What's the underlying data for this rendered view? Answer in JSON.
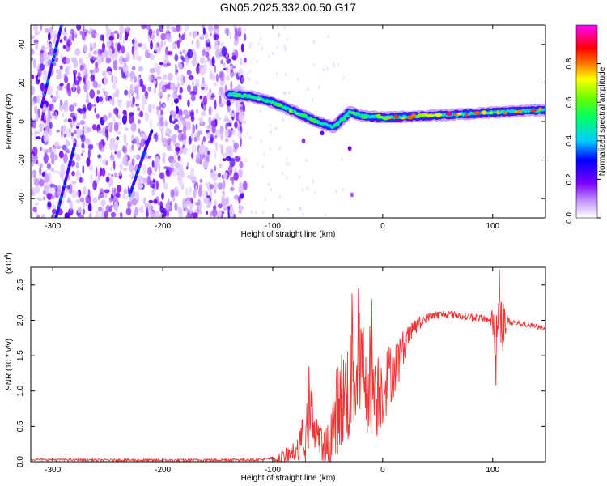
{
  "title": "GN05.2025.332.00.50.G17",
  "chart_data": [
    {
      "type": "heatmap",
      "title": "GN05.2025.332.00.50.G17",
      "xlabel": "Height of straight line (km)",
      "ylabel": "Frequency (Hz)",
      "xlim": [
        -320,
        148
      ],
      "ylim": [
        -50,
        50
      ],
      "xticks": [
        -300,
        -200,
        -100,
        0,
        100
      ],
      "yticks": [
        -40,
        -20,
        0,
        20,
        40
      ],
      "colorbar": {
        "label": "Normalized spectral amplitude",
        "range": [
          0.0,
          1.0
        ],
        "ticks": [
          0.0,
          0.2,
          0.4,
          0.6,
          0.8
        ],
        "tick_labels": [
          "0.0",
          "0.2",
          "0.4",
          "0.6",
          "0.8"
        ],
        "colormap": [
          "#ffffff",
          "#8800ff",
          "#0000ff",
          "#00ffff",
          "#00ff00",
          "#ffff00",
          "#ff0000",
          "#ff00ff"
        ]
      },
      "noise_region_x": [
        -320,
        -125
      ],
      "signal_ridge": [
        {
          "x": -140,
          "y": 14
        },
        {
          "x": -120,
          "y": 13
        },
        {
          "x": -100,
          "y": 10
        },
        {
          "x": -80,
          "y": 5
        },
        {
          "x": -60,
          "y": 0
        },
        {
          "x": -45,
          "y": -3
        },
        {
          "x": -30,
          "y": 5
        },
        {
          "x": -20,
          "y": 3
        },
        {
          "x": 0,
          "y": 2
        },
        {
          "x": 40,
          "y": 3
        },
        {
          "x": 80,
          "y": 4
        },
        {
          "x": 110,
          "y": 5
        },
        {
          "x": 148,
          "y": 6
        }
      ],
      "streaks": [
        {
          "x": [
            -310,
            -292
          ],
          "y": [
            8,
            50
          ]
        },
        {
          "x": [
            -297,
            -280
          ],
          "y": [
            -50,
            -12
          ]
        },
        {
          "x": [
            -230,
            -210
          ],
          "y": [
            -38,
            -5
          ]
        }
      ]
    },
    {
      "type": "line",
      "xlabel": "Height of straight line (km)",
      "ylabel": "SNR (10 * v/v)",
      "yscale_label": "(x10",
      "yscale_exp": "4",
      "yscale_close": ")",
      "xlim": [
        -320,
        148
      ],
      "ylim": [
        0,
        2.75
      ],
      "xticks": [
        -300,
        -200,
        -100,
        0,
        100
      ],
      "yticks": [
        0.0,
        0.5,
        1.0,
        1.5,
        2.0,
        2.5
      ],
      "ytick_labels": [
        "0.0",
        "0.5",
        "1.0",
        "1.5",
        "2.0",
        "2.5"
      ],
      "color": "#ee3333",
      "envelope": [
        {
          "x": -320,
          "y": 0.03
        },
        {
          "x": -200,
          "y": 0.02
        },
        {
          "x": -110,
          "y": 0.03
        },
        {
          "x": -95,
          "y": 0.06
        },
        {
          "x": -80,
          "y": 0.15
        },
        {
          "x": -70,
          "y": 0.45
        },
        {
          "x": -65,
          "y": 0.75
        },
        {
          "x": -60,
          "y": 0.5
        },
        {
          "x": -55,
          "y": 0.2
        },
        {
          "x": -50,
          "y": 0.2
        },
        {
          "x": -45,
          "y": 0.55
        },
        {
          "x": -40,
          "y": 0.9
        },
        {
          "x": -35,
          "y": 1.0
        },
        {
          "x": -30,
          "y": 1.15
        },
        {
          "x": -25,
          "y": 1.4
        },
        {
          "x": -20,
          "y": 1.35
        },
        {
          "x": -15,
          "y": 1.3
        },
        {
          "x": -10,
          "y": 1.25
        },
        {
          "x": -5,
          "y": 1.05
        },
        {
          "x": 0,
          "y": 1.1
        },
        {
          "x": 5,
          "y": 1.25
        },
        {
          "x": 10,
          "y": 1.35
        },
        {
          "x": 20,
          "y": 1.7
        },
        {
          "x": 30,
          "y": 1.95
        },
        {
          "x": 45,
          "y": 2.08
        },
        {
          "x": 60,
          "y": 2.09
        },
        {
          "x": 80,
          "y": 2.06
        },
        {
          "x": 95,
          "y": 2.02
        },
        {
          "x": 100,
          "y": 2.0
        },
        {
          "x": 103,
          "y": 1.8
        },
        {
          "x": 105,
          "y": 2.2
        },
        {
          "x": 110,
          "y": 2.0
        },
        {
          "x": 120,
          "y": 1.97
        },
        {
          "x": 135,
          "y": 1.93
        },
        {
          "x": 148,
          "y": 1.88
        }
      ],
      "noise_amplitude": [
        {
          "x": -320,
          "y": 0.02
        },
        {
          "x": -100,
          "y": 0.03
        },
        {
          "x": -80,
          "y": 0.15
        },
        {
          "x": -65,
          "y": 0.45
        },
        {
          "x": -55,
          "y": 0.25
        },
        {
          "x": -40,
          "y": 0.7
        },
        {
          "x": -25,
          "y": 0.9
        },
        {
          "x": -10,
          "y": 0.8
        },
        {
          "x": 0,
          "y": 0.55
        },
        {
          "x": 10,
          "y": 0.4
        },
        {
          "x": 25,
          "y": 0.12
        },
        {
          "x": 40,
          "y": 0.06
        },
        {
          "x": 98,
          "y": 0.05
        },
        {
          "x": 103,
          "y": 0.45
        },
        {
          "x": 108,
          "y": 0.4
        },
        {
          "x": 115,
          "y": 0.05
        },
        {
          "x": 148,
          "y": 0.03
        }
      ],
      "peaks": [
        {
          "x": -67,
          "y": 1.35
        },
        {
          "x": -28,
          "y": 2.38
        },
        {
          "x": -22,
          "y": 2.45
        },
        {
          "x": -10,
          "y": 2.3
        },
        {
          "x": 103,
          "y": 1.08
        },
        {
          "x": 106,
          "y": 2.72
        }
      ]
    }
  ]
}
